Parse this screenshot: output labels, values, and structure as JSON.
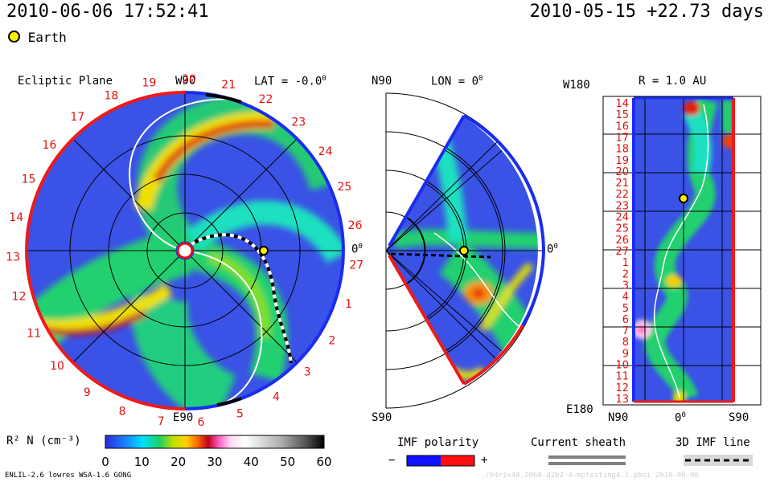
{
  "header": {
    "datetime": "2010-06-06 17:52:41",
    "reference": "2010-05-15 +22.73 days",
    "earth_label": "Earth"
  },
  "panels": {
    "ecliptic": {
      "title": "Ecliptic Plane",
      "top_label": "W90",
      "bottom_label": "E90",
      "lat_label": "LAT = -0.0",
      "zero_label": "0",
      "deg": "0"
    },
    "meridional": {
      "top_label": "N90",
      "bottom_label": "S90",
      "lon_label": "LON = 0",
      "zero_label": "0",
      "deg": "0"
    },
    "radial": {
      "top_label": "W180",
      "bottom_label": "E180",
      "r_label": "R = 1.0 AU",
      "x_left": "N90",
      "x_mid": "0",
      "x_right": "S90",
      "deg": "0"
    }
  },
  "chart_data": [
    {
      "type": "heatmap",
      "title": "Ecliptic Plane",
      "subtitle": "LAT = -0.0°",
      "quantity": "R^2 N (cm^-3)",
      "angular_labels": [
        "19",
        "20",
        "21",
        "22",
        "23",
        "24",
        "25",
        "26",
        "27",
        "1",
        "2",
        "3",
        "4",
        "5",
        "6",
        "7",
        "8",
        "9",
        "10",
        "11",
        "12",
        "13",
        "14",
        "15",
        "16",
        "17",
        "18"
      ],
      "earth_position": {
        "lon_deg": 0,
        "r_au": 1.0
      }
    },
    {
      "type": "heatmap",
      "title": "Meridional Plane",
      "subtitle": "LON = 0°",
      "axis_labels": [
        "N90",
        "S90",
        "0°"
      ]
    },
    {
      "type": "heatmap",
      "title": "Radial Surface",
      "subtitle": "R = 1.0 AU",
      "ylabel_top": "W180",
      "ylabel_bottom": "E180",
      "y_ticks": [
        "14",
        "15",
        "16",
        "17",
        "18",
        "19",
        "20",
        "21",
        "22",
        "23",
        "24",
        "25",
        "26",
        "27",
        "1",
        "2",
        "3",
        "4",
        "5",
        "6",
        "7",
        "8",
        "9",
        "10",
        "11",
        "12",
        "13"
      ],
      "x_ticks": [
        "N90",
        "0°",
        "S90"
      ]
    },
    {
      "type": "colorbar",
      "label": "R² N (cm⁻³)",
      "ticks": [
        0,
        10,
        20,
        30,
        40,
        50,
        60
      ],
      "range": [
        0,
        60
      ]
    }
  ],
  "legends": {
    "imf_polarity": {
      "label": "IMF polarity",
      "minus": "−",
      "plus": "+",
      "neg_color": "#1010ff",
      "pos_color": "#ff1010"
    },
    "current_sheath": {
      "label": "Current sheath"
    },
    "imf_line": {
      "label": "3D IMF line"
    }
  },
  "footer": {
    "left": "ENLIL-2.6 lowres WSA-1.6 GONG",
    "right": "./64r1x48.2068-d2b2-4-mptesting4.1.pbsi   2010-06-06"
  }
}
